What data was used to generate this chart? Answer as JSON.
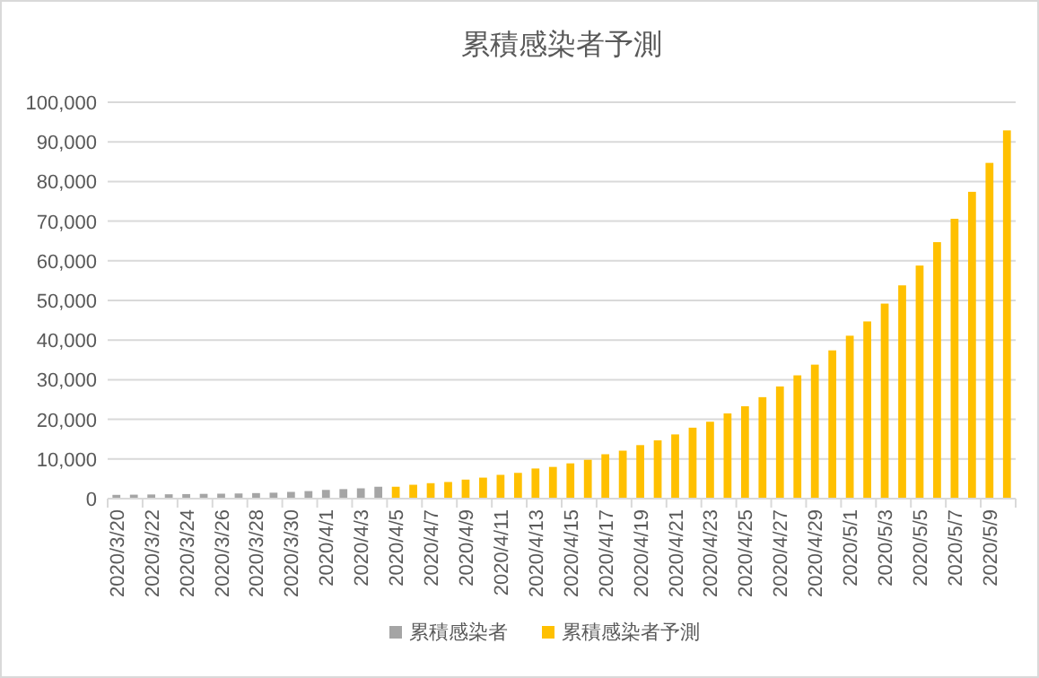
{
  "chart_data": {
    "type": "bar",
    "title": "累積感染者予測",
    "categories": [
      "2020/3/20",
      null,
      "2020/3/22",
      null,
      "2020/3/24",
      null,
      "2020/3/26",
      null,
      "2020/3/28",
      null,
      "2020/3/30",
      null,
      "2020/4/1",
      null,
      "2020/4/3",
      null,
      "2020/4/5",
      null,
      "2020/4/7",
      null,
      "2020/4/9",
      null,
      "2020/4/11",
      null,
      "2020/4/13",
      null,
      "2020/4/15",
      null,
      "2020/4/17",
      null,
      "2020/4/19",
      null,
      "2020/4/21",
      null,
      "2020/4/23",
      null,
      "2020/4/25",
      null,
      "2020/4/27",
      null,
      "2020/4/29",
      null,
      "2020/5/1",
      null,
      "2020/5/3",
      null,
      "2020/5/5",
      null,
      "2020/5/7",
      null,
      "2020/5/9",
      null
    ],
    "series": [
      {
        "name": "累積感染者",
        "color": "#a5a5a5",
        "values": [
          950,
          1000,
          1050,
          1100,
          1150,
          1200,
          1250,
          1300,
          1400,
          1500,
          1700,
          1900,
          2200,
          2400,
          2600,
          3000,
          null,
          null,
          null,
          null,
          null,
          null,
          null,
          null,
          null,
          null,
          null,
          null,
          null,
          null,
          null,
          null,
          null,
          null,
          null,
          null,
          null,
          null,
          null,
          null,
          null,
          null,
          null,
          null,
          null,
          null,
          null,
          null,
          null,
          null,
          null,
          null
        ]
      },
      {
        "name": "累積感染者予測",
        "color": "#ffc000",
        "values": [
          null,
          null,
          null,
          null,
          null,
          null,
          null,
          null,
          null,
          null,
          null,
          null,
          null,
          null,
          null,
          null,
          3000,
          3500,
          3900,
          4200,
          4800,
          5300,
          6000,
          6500,
          7600,
          8000,
          8900,
          9800,
          11200,
          12100,
          13500,
          14700,
          16200,
          17900,
          19400,
          21500,
          23300,
          25600,
          28300,
          31100,
          33800,
          37400,
          41100,
          44700,
          49200,
          53800,
          58800,
          64700,
          70600,
          77400,
          84700,
          92900
        ]
      }
    ],
    "ylim": [
      0,
      100000
    ],
    "yticks": [
      0,
      {
        "value": 10000,
        "label": "10,000"
      },
      {
        "value": 20000,
        "label": "20,000"
      },
      {
        "value": 30000,
        "label": "30,000"
      },
      {
        "value": 40000,
        "label": "40,000"
      },
      {
        "value": 50000,
        "label": "50,000"
      },
      {
        "value": 60000,
        "label": "60,000"
      },
      {
        "value": 70000,
        "label": "70,000"
      },
      {
        "value": 80000,
        "label": "80,000"
      },
      {
        "value": 90000,
        "label": "90,000"
      },
      {
        "value": 100000,
        "label": "100,000"
      }
    ],
    "grid": "y",
    "legend": "bottom"
  }
}
